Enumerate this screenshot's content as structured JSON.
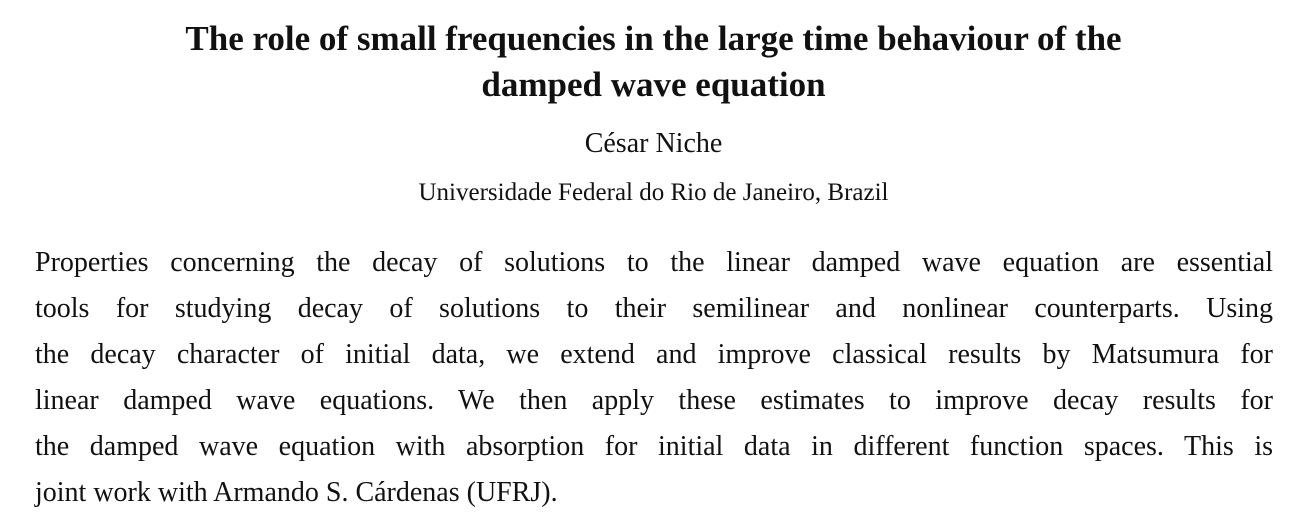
{
  "header": {
    "title_lines": [
      "The role of small frequencies in the large time behaviour of the",
      "damped wave equation"
    ],
    "author": "César Niche",
    "affiliation": "Universidade Federal do Rio de Janeiro, Brazil"
  },
  "abstract": {
    "lines": [
      "Properties concerning the decay of solutions to the linear damped wave equation are essential",
      "tools for studying decay of solutions to their semilinear and nonlinear counterparts.  Using",
      "the decay character of initial data, we extend and improve classical results by Matsumura for",
      "linear damped wave equations.  We then apply these estimates to improve decay results for",
      "the damped wave equation with absorption for initial data in different function spaces. This is",
      "joint work with Armando S. Cárdenas (UFRJ)."
    ]
  }
}
